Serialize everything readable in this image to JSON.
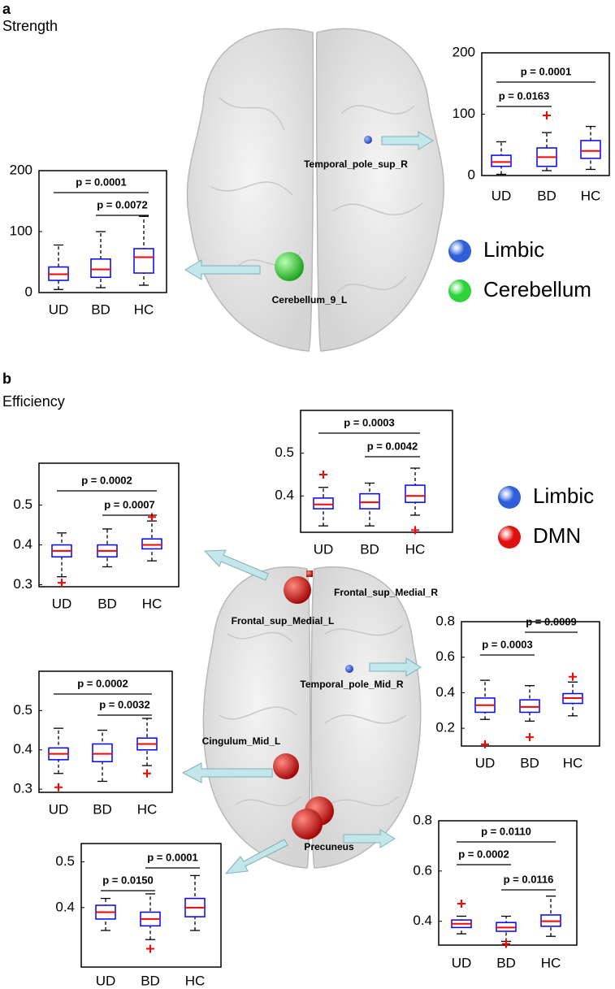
{
  "panels": [
    {
      "label": "a",
      "title": "Strength"
    },
    {
      "label": "b",
      "title": "Efficiency"
    }
  ],
  "brain_regions": [
    "Temporal_pole_sup_R",
    "Cerebellum_9_L",
    "Frontal_sup_Medial_R",
    "Frontal_sup_Medial_L",
    "Temporal_pole_Mid_R",
    "Cingulum_Mid_L",
    "Precuneus"
  ],
  "legends": [
    [
      {
        "name": "Limbic",
        "color": "#2f5fd8"
      },
      {
        "name": "Cerebellum",
        "color": "#2ed23a"
      }
    ],
    [
      {
        "name": "Limbic",
        "color": "#2f5fd8"
      },
      {
        "name": "DMN",
        "color": "#e0100f"
      }
    ]
  ],
  "chart_data": [
    {
      "type": "box",
      "categories": [
        "UD",
        "BD",
        "HC"
      ],
      "ylim": [
        0,
        200
      ],
      "yticks": [
        0,
        100,
        200
      ],
      "box_color": "#0000ff",
      "median_color": "#ff0000",
      "boxes": [
        {
          "whisker_low": 5,
          "q1": 20,
          "median": 30,
          "q3": 42,
          "whisker_high": 78,
          "outliers": []
        },
        {
          "whisker_low": 8,
          "q1": 25,
          "median": 38,
          "q3": 55,
          "whisker_high": 100,
          "outliers": []
        },
        {
          "whisker_low": 12,
          "q1": 32,
          "median": 58,
          "q3": 72,
          "whisker_high": 125,
          "outliers": []
        }
      ],
      "comparisons": [
        {
          "label": "p = 0.0001",
          "between": [
            "UD",
            "HC"
          ]
        },
        {
          "label": "p = 0.0072",
          "between": [
            "BD",
            "HC"
          ]
        }
      ]
    },
    {
      "type": "box",
      "categories": [
        "UD",
        "BD",
        "HC"
      ],
      "ylim": [
        0,
        200
      ],
      "yticks": [
        0,
        100,
        200
      ],
      "box_color": "#0000ff",
      "median_color": "#ff0000",
      "boxes": [
        {
          "whisker_low": 2,
          "q1": 15,
          "median": 22,
          "q3": 33,
          "whisker_high": 55,
          "outliers": []
        },
        {
          "whisker_low": 8,
          "q1": 15,
          "median": 30,
          "q3": 45,
          "whisker_high": 70,
          "outliers": [
            98
          ]
        },
        {
          "whisker_low": 10,
          "q1": 28,
          "median": 40,
          "q3": 57,
          "whisker_high": 80,
          "outliers": []
        }
      ],
      "comparisons": [
        {
          "label": "p = 0.0001",
          "between": [
            "UD",
            "HC"
          ]
        },
        {
          "label": "p = 0.0163",
          "between": [
            "UD",
            "BD"
          ]
        }
      ]
    },
    {
      "type": "box",
      "categories": [
        "UD",
        "BD",
        "HC"
      ],
      "ylim": [
        0.315,
        0.6
      ],
      "yticks": [
        0.4,
        0.5
      ],
      "box_color": "#0000ff",
      "median_color": "#ff0000",
      "boxes": [
        {
          "whisker_low": 0.33,
          "q1": 0.37,
          "median": 0.38,
          "q3": 0.395,
          "whisker_high": 0.42,
          "outliers": [
            0.45
          ]
        },
        {
          "whisker_low": 0.33,
          "q1": 0.37,
          "median": 0.385,
          "q3": 0.405,
          "whisker_high": 0.43,
          "outliers": []
        },
        {
          "whisker_low": 0.355,
          "q1": 0.385,
          "median": 0.4,
          "q3": 0.425,
          "whisker_high": 0.465,
          "outliers": [
            0.32
          ]
        }
      ],
      "comparisons": [
        {
          "label": "p = 0.0003",
          "between": [
            "UD",
            "HC"
          ]
        },
        {
          "label": "p = 0.0042",
          "between": [
            "BD",
            "HC"
          ]
        }
      ]
    },
    {
      "type": "box",
      "categories": [
        "UD",
        "BD",
        "HC"
      ],
      "ylim": [
        0.295,
        0.605
      ],
      "yticks": [
        0.3,
        0.4,
        0.5
      ],
      "box_color": "#0000ff",
      "median_color": "#ff0000",
      "boxes": [
        {
          "whisker_low": 0.32,
          "q1": 0.37,
          "median": 0.385,
          "q3": 0.4,
          "whisker_high": 0.43,
          "outliers": [
            0.305
          ]
        },
        {
          "whisker_low": 0.345,
          "q1": 0.37,
          "median": 0.385,
          "q3": 0.4,
          "whisker_high": 0.44,
          "outliers": []
        },
        {
          "whisker_low": 0.36,
          "q1": 0.39,
          "median": 0.4,
          "q3": 0.415,
          "whisker_high": 0.46,
          "outliers": [
            0.47
          ]
        }
      ],
      "comparisons": [
        {
          "label": "p = 0.0002",
          "between": [
            "UD",
            "HC"
          ]
        },
        {
          "label": "p = 0.0007",
          "between": [
            "BD",
            "HC"
          ]
        }
      ]
    },
    {
      "type": "box",
      "categories": [
        "UD",
        "BD",
        "HC"
      ],
      "ylim": [
        0.292,
        0.6
      ],
      "yticks": [
        0.3,
        0.4,
        0.5
      ],
      "box_color": "#0000ff",
      "median_color": "#ff0000",
      "boxes": [
        {
          "whisker_low": 0.34,
          "q1": 0.375,
          "median": 0.39,
          "q3": 0.405,
          "whisker_high": 0.455,
          "outliers": [
            0.305
          ]
        },
        {
          "whisker_low": 0.32,
          "q1": 0.37,
          "median": 0.39,
          "q3": 0.415,
          "whisker_high": 0.45,
          "outliers": []
        },
        {
          "whisker_low": 0.36,
          "q1": 0.4,
          "median": 0.415,
          "q3": 0.43,
          "whisker_high": 0.48,
          "outliers": [
            0.34
          ]
        }
      ],
      "comparisons": [
        {
          "label": "p = 0.0002",
          "between": [
            "UD",
            "HC"
          ]
        },
        {
          "label": "p = 0.0032",
          "between": [
            "BD",
            "HC"
          ]
        }
      ]
    },
    {
      "type": "box",
      "categories": [
        "UD",
        "BD",
        "HC"
      ],
      "ylim": [
        0.1,
        0.8
      ],
      "yticks": [
        0.2,
        0.4,
        0.6,
        0.8
      ],
      "box_color": "#0000ff",
      "median_color": "#ff0000",
      "boxes": [
        {
          "whisker_low": 0.25,
          "q1": 0.29,
          "median": 0.33,
          "q3": 0.37,
          "whisker_high": 0.47,
          "outliers": [
            0.11
          ]
        },
        {
          "whisker_low": 0.24,
          "q1": 0.29,
          "median": 0.32,
          "q3": 0.36,
          "whisker_high": 0.44,
          "outliers": [
            0.15
          ]
        },
        {
          "whisker_low": 0.27,
          "q1": 0.34,
          "median": 0.37,
          "q3": 0.395,
          "whisker_high": 0.46,
          "outliers": [
            0.49
          ]
        }
      ],
      "comparisons": [
        {
          "label": "p = 0.0009",
          "between": [
            "BD",
            "HC"
          ]
        },
        {
          "label": "p = 0.0003",
          "between": [
            "UD",
            "BD"
          ]
        }
      ]
    },
    {
      "type": "box",
      "categories": [
        "UD",
        "BD",
        "HC"
      ],
      "ylim": [
        0.27,
        0.54
      ],
      "yticks": [
        0.4,
        0.5
      ],
      "box_color": "#0000ff",
      "median_color": "#ff0000",
      "boxes": [
        {
          "whisker_low": 0.35,
          "q1": 0.375,
          "median": 0.39,
          "q3": 0.405,
          "whisker_high": 0.42,
          "outliers": []
        },
        {
          "whisker_low": 0.33,
          "q1": 0.36,
          "median": 0.375,
          "q3": 0.39,
          "whisker_high": 0.43,
          "outliers": [
            0.31
          ]
        },
        {
          "whisker_low": 0.35,
          "q1": 0.38,
          "median": 0.4,
          "q3": 0.42,
          "whisker_high": 0.47,
          "outliers": []
        }
      ],
      "comparisons": [
        {
          "label": "p = 0.0001",
          "between": [
            "BD",
            "HC"
          ]
        },
        {
          "label": "p = 0.0150",
          "between": [
            "UD",
            "BD"
          ]
        }
      ]
    },
    {
      "type": "box",
      "categories": [
        "UD",
        "BD",
        "HC"
      ],
      "ylim": [
        0.305,
        0.8
      ],
      "yticks": [
        0.4,
        0.6,
        0.8
      ],
      "box_color": "#0000ff",
      "median_color": "#ff0000",
      "boxes": [
        {
          "whisker_low": 0.35,
          "q1": 0.375,
          "median": 0.39,
          "q3": 0.405,
          "whisker_high": 0.42,
          "outliers": [
            0.47
          ]
        },
        {
          "whisker_low": 0.32,
          "q1": 0.36,
          "median": 0.375,
          "q3": 0.395,
          "whisker_high": 0.42,
          "outliers": [
            0.31
          ]
        },
        {
          "whisker_low": 0.34,
          "q1": 0.38,
          "median": 0.4,
          "q3": 0.425,
          "whisker_high": 0.5,
          "outliers": []
        }
      ],
      "comparisons": [
        {
          "label": "p = 0.0110",
          "between": [
            "UD",
            "HC"
          ]
        },
        {
          "label": "p = 0.0002",
          "between": [
            "UD",
            "BD"
          ]
        },
        {
          "label": "p = 0.0116",
          "between": [
            "BD",
            "HC"
          ]
        }
      ]
    }
  ]
}
